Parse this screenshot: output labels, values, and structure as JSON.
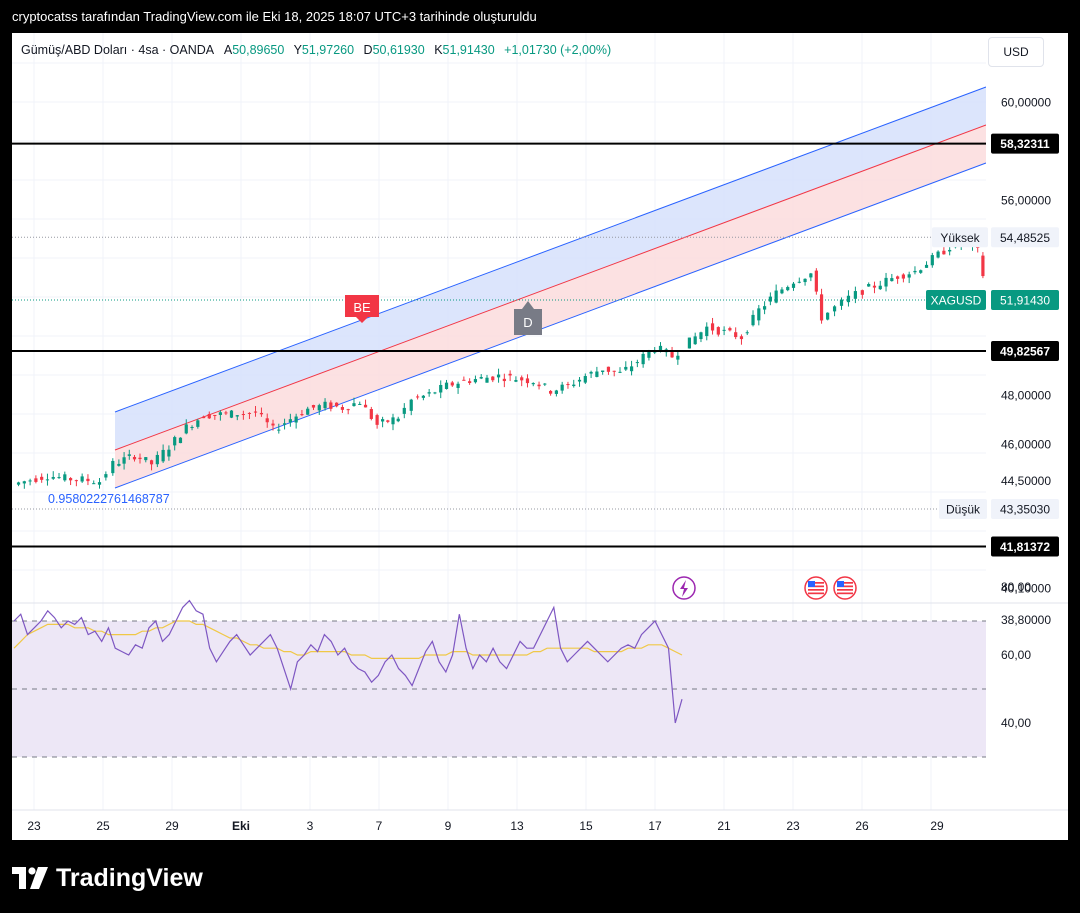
{
  "header": {
    "caption": "cryptocatss tarafından TradingView.com ile Eki 18, 2025 18:07 UTC+3 tarihinde oluşturuldu"
  },
  "legend": {
    "title": "Gümüş/ABD Doları · 4sa · OANDA",
    "open_label": "A",
    "open": "50,89650",
    "high_label": "Y",
    "high": "51,97260",
    "low_label": "D",
    "low": "50,61930",
    "close_label": "K",
    "close": "51,91430",
    "change": "+1,01730 (+2,00%)"
  },
  "currency_button": "USD",
  "brand": "TradingView",
  "colors": {
    "up": "#089981",
    "down": "#f23645",
    "channel_line": "#2962ff",
    "channel_upper_fill": "#d6e0fc",
    "channel_lower_fill": "#fcdcdd",
    "median": "#f23645",
    "rsi": "#7e57c2",
    "rsi_ma": "#f0c846",
    "rsi_band": "#ede7f6"
  },
  "chart_data": [
    {
      "type": "candlestick",
      "instrument": "Gümüş/ABD Doları · 4sa · OANDA",
      "y_scale_ticks": [
        "60,00000",
        "56,00000",
        "48,00000",
        "46,00000",
        "44,50000",
        "40,10000",
        "38,80000"
      ],
      "x_ticks": [
        "23",
        "25",
        "29",
        "Eki",
        "3",
        "7",
        "9",
        "13",
        "15",
        "17",
        "21",
        "23",
        "26",
        "29"
      ],
      "ohlc_close_path": [
        [
          22.5,
          44.35
        ],
        [
          23.0,
          44.55
        ],
        [
          23.5,
          44.72
        ],
        [
          24.0,
          44.6
        ],
        [
          24.5,
          44.55
        ],
        [
          25.0,
          44.48
        ],
        [
          25.4,
          45.2
        ],
        [
          26.0,
          45.55
        ],
        [
          26.5,
          45.2
        ],
        [
          27.0,
          45.9
        ],
        [
          27.5,
          46.7
        ],
        [
          28.0,
          47.2
        ],
        [
          28.8,
          47.25
        ],
        [
          29.5,
          47.3
        ],
        [
          30.0,
          46.6
        ],
        [
          30.5,
          47.05
        ],
        [
          31.0,
          47.45
        ],
        [
          31.5,
          47.6
        ],
        [
          32.0,
          47.5
        ],
        [
          32.5,
          47.75
        ],
        [
          33.0,
          46.8
        ],
        [
          33.6,
          47.1
        ],
        [
          34.0,
          47.8
        ],
        [
          34.5,
          48.05
        ],
        [
          35.0,
          48.4
        ],
        [
          35.5,
          48.6
        ],
        [
          36.0,
          48.7
        ],
        [
          36.5,
          48.8
        ],
        [
          37.0,
          48.7
        ],
        [
          37.5,
          48.6
        ],
        [
          38.0,
          48.2
        ],
        [
          38.5,
          48.4
        ],
        [
          39.0,
          48.8
        ],
        [
          39.5,
          49.1
        ],
        [
          40.0,
          48.9
        ],
        [
          40.5,
          49.4
        ],
        [
          41.0,
          50.0
        ],
        [
          41.5,
          49.6
        ],
        [
          42.0,
          50.2
        ],
        [
          42.5,
          50.8
        ],
        [
          43.0,
          50.6
        ],
        [
          43.5,
          50.4
        ],
        [
          44.0,
          51.5
        ],
        [
          44.5,
          52.2
        ],
        [
          45.0,
          52.7
        ],
        [
          45.5,
          53.0
        ],
        [
          45.8,
          51.2
        ],
        [
          46.2,
          51.6
        ],
        [
          46.6,
          52.0
        ],
        [
          47.0,
          52.3
        ],
        [
          47.5,
          52.6
        ],
        [
          48.0,
          52.9
        ],
        [
          48.5,
          53.1
        ],
        [
          49.0,
          53.6
        ],
        [
          49.5,
          54.1
        ],
        [
          50.0,
          54.25
        ],
        [
          50.3,
          53.9
        ],
        [
          50.6,
          52.0
        ],
        [
          50.75,
          51.91
        ]
      ],
      "horizontal_levels": [
        58.32311,
        49.82567,
        41.81372
      ],
      "price_labels": [
        {
          "text": "58,32311",
          "kind": "level"
        },
        {
          "text": "Yüksek",
          "kind": "tag"
        },
        {
          "text": "54,48525",
          "kind": "tag-value"
        },
        {
          "text": "XAGUSD",
          "kind": "last"
        },
        {
          "text": "51,91430",
          "kind": "last"
        },
        {
          "text": "49,82567",
          "kind": "level"
        },
        {
          "text": "Düşük",
          "kind": "tag"
        },
        {
          "text": "43,35030",
          "kind": "tag-value"
        },
        {
          "text": "41,81372",
          "kind": "level"
        }
      ],
      "channel_ratio_label": "0.9580222761468787",
      "markers": [
        {
          "text": "BE"
        },
        {
          "text": "D"
        }
      ]
    },
    {
      "type": "line",
      "name": "RSI",
      "y_ticks": [
        "80,00",
        "60,00",
        "40,00"
      ],
      "ylim": [
        30,
        80
      ],
      "bands": {
        "upper": 70,
        "middle": 50,
        "lower": 30
      },
      "values": [
        70,
        72,
        66,
        68,
        70,
        73,
        71,
        68,
        70,
        69,
        71,
        66,
        67,
        64,
        68,
        62,
        61,
        60,
        63,
        62,
        68,
        70,
        64,
        66,
        70,
        74,
        76,
        73,
        72,
        62,
        58,
        61,
        64,
        66,
        63,
        60,
        62,
        64,
        66,
        62,
        56,
        50,
        58,
        60,
        63,
        61,
        66,
        64,
        60,
        62,
        58,
        56,
        55,
        52,
        54,
        58,
        60,
        56,
        54,
        51,
        56,
        61,
        64,
        58,
        55,
        60,
        72,
        62,
        56,
        60,
        58,
        62,
        58,
        56,
        60,
        64,
        62,
        62,
        66,
        70,
        74,
        62,
        58,
        60,
        62,
        64,
        62,
        60,
        58,
        60,
        62,
        63,
        62,
        66,
        68,
        70,
        66,
        62,
        40,
        47
      ],
      "ma_values": [
        62,
        64,
        66,
        67,
        68,
        69,
        69,
        69,
        69,
        68,
        68,
        68,
        67,
        67,
        66,
        66,
        66,
        66,
        66,
        67,
        67,
        68,
        68,
        69,
        70,
        70,
        70,
        69,
        69,
        68,
        67,
        66,
        65,
        65,
        64,
        63,
        63,
        62,
        62,
        62,
        61,
        61,
        60,
        60,
        61,
        61,
        61,
        61,
        61,
        61,
        60,
        60,
        60,
        59,
        59,
        59,
        59,
        59,
        59,
        59,
        59,
        60,
        60,
        60,
        60,
        61,
        61,
        61,
        60,
        60,
        60,
        60,
        60,
        60,
        60,
        60,
        60,
        61,
        61,
        62,
        62,
        62,
        62,
        62,
        62,
        62,
        61,
        61,
        61,
        61,
        61,
        62,
        62,
        62,
        63,
        63,
        63,
        62,
        61,
        60
      ]
    }
  ]
}
